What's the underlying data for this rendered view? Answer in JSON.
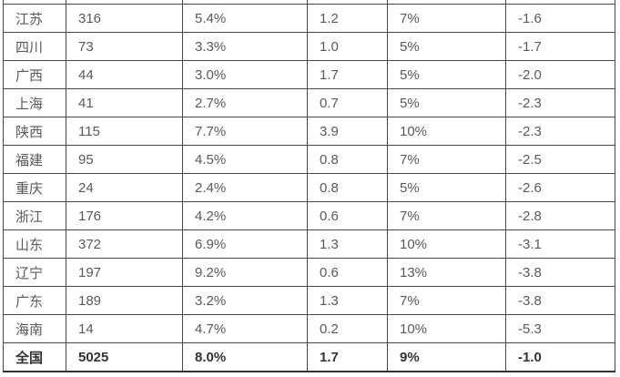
{
  "colors": {
    "border": "#474747",
    "text": "#595959",
    "total_text": "#333333",
    "background": "#ffffff"
  },
  "table": {
    "rows": [
      {
        "total": false,
        "cells": [
          "江苏",
          "316",
          "5.4%",
          "1.2",
          "7%",
          "-1.6"
        ]
      },
      {
        "total": false,
        "cells": [
          "四川",
          "73",
          "3.3%",
          "1.0",
          "5%",
          "-1.7"
        ]
      },
      {
        "total": false,
        "cells": [
          "广西",
          "44",
          "3.0%",
          "1.7",
          "5%",
          "-2.0"
        ]
      },
      {
        "total": false,
        "cells": [
          "上海",
          "41",
          "2.7%",
          "0.7",
          "5%",
          "-2.3"
        ]
      },
      {
        "total": false,
        "cells": [
          "陕西",
          "115",
          "7.7%",
          "3.9",
          "10%",
          "-2.3"
        ]
      },
      {
        "total": false,
        "cells": [
          "福建",
          "95",
          "4.5%",
          "0.8",
          "7%",
          "-2.5"
        ]
      },
      {
        "total": false,
        "cells": [
          "重庆",
          "24",
          "2.4%",
          "0.8",
          "5%",
          "-2.6"
        ]
      },
      {
        "total": false,
        "cells": [
          "浙江",
          "176",
          "4.2%",
          "0.6",
          "7%",
          "-2.8"
        ]
      },
      {
        "total": false,
        "cells": [
          "山东",
          "372",
          "6.9%",
          "1.3",
          "10%",
          "-3.1"
        ]
      },
      {
        "total": false,
        "cells": [
          "辽宁",
          "197",
          "9.2%",
          "0.6",
          "13%",
          "-3.8"
        ]
      },
      {
        "total": false,
        "cells": [
          "广东",
          "189",
          "3.2%",
          "1.3",
          "7%",
          "-3.8"
        ]
      },
      {
        "total": false,
        "cells": [
          "海南",
          "14",
          "4.7%",
          "0.2",
          "10%",
          "-5.3"
        ]
      },
      {
        "total": true,
        "cells": [
          "全国",
          "5025",
          "8.0%",
          "1.7",
          "9%",
          "-1.0"
        ]
      }
    ]
  },
  "chart_data": {
    "type": "table",
    "rows": [
      [
        "江苏",
        "316",
        "5.4%",
        "1.2",
        "7%",
        "-1.6"
      ],
      [
        "四川",
        "73",
        "3.3%",
        "1.0",
        "5%",
        "-1.7"
      ],
      [
        "广西",
        "44",
        "3.0%",
        "1.7",
        "5%",
        "-2.0"
      ],
      [
        "上海",
        "41",
        "2.7%",
        "0.7",
        "5%",
        "-2.3"
      ],
      [
        "陕西",
        "115",
        "7.7%",
        "3.9",
        "10%",
        "-2.3"
      ],
      [
        "福建",
        "95",
        "4.5%",
        "0.8",
        "7%",
        "-2.5"
      ],
      [
        "重庆",
        "24",
        "2.4%",
        "0.8",
        "5%",
        "-2.6"
      ],
      [
        "浙江",
        "176",
        "4.2%",
        "0.6",
        "7%",
        "-2.8"
      ],
      [
        "山东",
        "372",
        "6.9%",
        "1.3",
        "10%",
        "-3.1"
      ],
      [
        "辽宁",
        "197",
        "9.2%",
        "0.6",
        "13%",
        "-3.8"
      ],
      [
        "广东",
        "189",
        "3.2%",
        "1.3",
        "7%",
        "-3.8"
      ],
      [
        "海南",
        "14",
        "4.7%",
        "0.2",
        "10%",
        "-5.3"
      ],
      [
        "全国",
        "5025",
        "8.0%",
        "1.7",
        "9%",
        "-1.0"
      ]
    ],
    "notes": "table cropped at top; no header row visible; last row 全国 is a bold total row"
  }
}
